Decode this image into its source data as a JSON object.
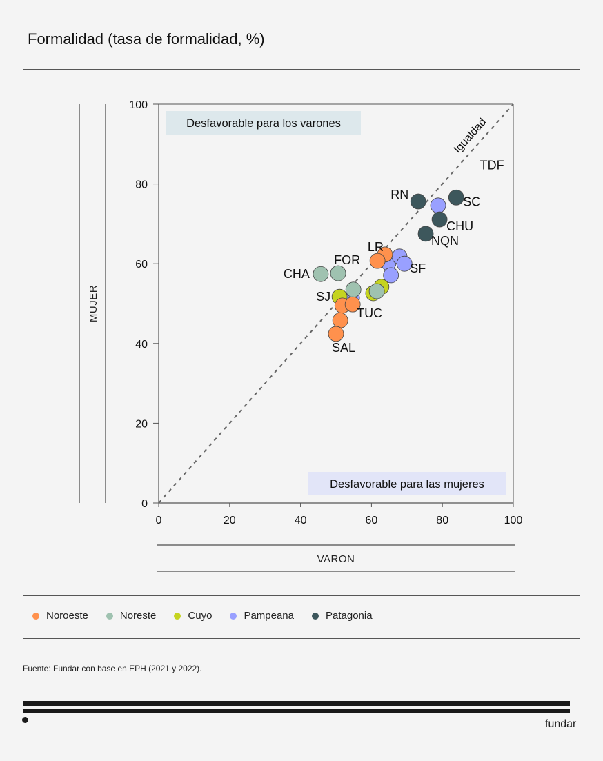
{
  "header": {
    "title_bold": "Formalidad",
    "title_rest": " (tasa de formalidad, %)"
  },
  "chart_data": {
    "type": "scatter",
    "title": "Formalidad (tasa de formalidad, %)",
    "xlabel": "VARON",
    "ylabel": "MUJER",
    "xlim": [
      0,
      100
    ],
    "ylim": [
      0,
      100
    ],
    "xticks": [
      0,
      20,
      40,
      60,
      80,
      100
    ],
    "yticks": [
      0,
      20,
      40,
      60,
      80,
      100
    ],
    "grid": false,
    "legend_position": "bottom",
    "reference_line": {
      "label": "Igualdad",
      "from": [
        0,
        0
      ],
      "to": [
        100,
        100
      ]
    },
    "annotations": [
      {
        "text": "Desfavorable para los varones",
        "position": "top-left"
      },
      {
        "text": "Desfavorable para las mujeres",
        "position": "bottom-right"
      }
    ],
    "regions": [
      {
        "name": "Noroeste",
        "color": "#ff914d"
      },
      {
        "name": "Noreste",
        "color": "#9fc2b0"
      },
      {
        "name": "Cuyo",
        "color": "#c5d420"
      },
      {
        "name": "Pampeana",
        "color": "#99a0ff"
      },
      {
        "name": "Patagonia",
        "color": "#3d575c"
      }
    ],
    "points": [
      {
        "region": "Patagonia",
        "label": "RN",
        "x": 73.2,
        "y": 75.6
      },
      {
        "region": "Pampeana",
        "label": "",
        "x": 78.8,
        "y": 74.6
      },
      {
        "region": "Patagonia",
        "label": "SC",
        "x": 83.9,
        "y": 76.6
      },
      {
        "region": "Patagonia",
        "label": "CHU",
        "x": 79.2,
        "y": 71.1
      },
      {
        "region": "Patagonia",
        "label": "NQN",
        "x": 75.3,
        "y": 67.5
      },
      {
        "region": "Pampeana",
        "label": "",
        "x": 64.8,
        "y": 60.2
      },
      {
        "region": "Pampeana",
        "label": "",
        "x": 67.9,
        "y": 61.8
      },
      {
        "region": "Pampeana",
        "label": "SF",
        "x": 69.3,
        "y": 60.0
      },
      {
        "region": "Pampeana",
        "label": "",
        "x": 65.5,
        "y": 57.1
      },
      {
        "region": "Noroeste",
        "label": "LR",
        "x": 63.8,
        "y": 62.3
      },
      {
        "region": "Noroeste",
        "label": "",
        "x": 61.7,
        "y": 60.7
      },
      {
        "region": "Cuyo",
        "label": "",
        "x": 62.8,
        "y": 54.2
      },
      {
        "region": "Cuyo",
        "label": "",
        "x": 60.5,
        "y": 52.6
      },
      {
        "region": "Noreste",
        "label": "",
        "x": 61.5,
        "y": 53.1
      },
      {
        "region": "Noreste",
        "label": "CHA",
        "x": 45.7,
        "y": 57.4
      },
      {
        "region": "Noreste",
        "label": "FOR",
        "x": 50.6,
        "y": 57.6
      },
      {
        "region": "Pampeana",
        "label": "",
        "x": 54.5,
        "y": 51.4
      },
      {
        "region": "Noreste",
        "label": "",
        "x": 54.9,
        "y": 53.5
      },
      {
        "region": "Cuyo",
        "label": "SJ",
        "x": 51.0,
        "y": 51.7
      },
      {
        "region": "Noroeste",
        "label": "",
        "x": 51.8,
        "y": 49.5
      },
      {
        "region": "Noroeste",
        "label": "TUC",
        "x": 54.7,
        "y": 49.8
      },
      {
        "region": "Noroeste",
        "label": "",
        "x": 51.2,
        "y": 45.8
      },
      {
        "region": "Noroeste",
        "label": "SAL",
        "x": 50.0,
        "y": 42.4
      }
    ],
    "extra_labels": [
      {
        "text": "TDF",
        "x": 94,
        "y": 85
      }
    ]
  },
  "legend": [
    {
      "label": "Noroeste",
      "color": "#ff914d"
    },
    {
      "label": "Noreste",
      "color": "#9fc2b0"
    },
    {
      "label": "Cuyo",
      "color": "#c5d420"
    },
    {
      "label": "Pampeana",
      "color": "#99a0ff"
    },
    {
      "label": "Patagonia",
      "color": "#3d575c"
    }
  ],
  "footer": {
    "source_label": "Fuente:",
    "source_text": " Fundar con base en EPH (2021 y 2022).",
    "brand": "fundar"
  }
}
